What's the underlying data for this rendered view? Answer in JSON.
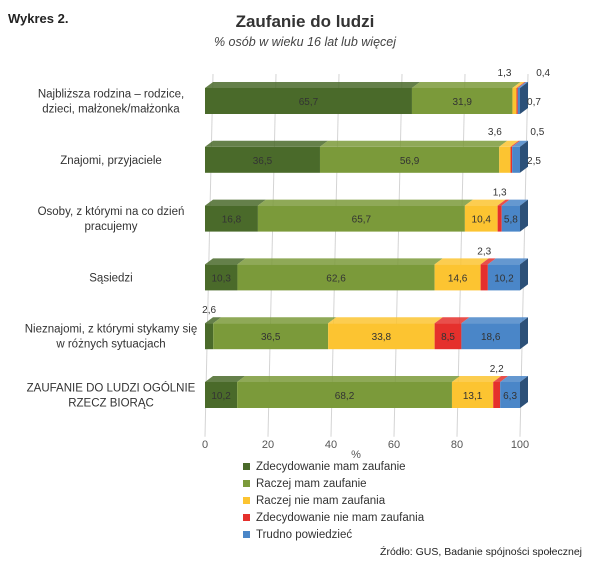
{
  "chart_data": {
    "type": "bar",
    "orientation": "horizontal",
    "stacked": true,
    "figure_label": "Wykres 2.",
    "title": "Zaufanie do ludzi",
    "subtitle": "% osób w wieku 16 lat lub więcej",
    "xlabel": "%",
    "xlim": [
      0,
      100
    ],
    "x_ticks": [
      "0",
      "20",
      "40",
      "60",
      "80",
      "100"
    ],
    "grid": true,
    "legend_position": "bottom",
    "source": "Źródło: GUS, Badanie spójności społecznej",
    "categories": [
      [
        "Najbliższa rodzina – rodzice,",
        "dzieci, małżonek/małżonka"
      ],
      [
        "Znajomi, przyjaciele"
      ],
      [
        "Osoby, z którymi na co dzień",
        "pracujemy"
      ],
      [
        "Sąsiedzi"
      ],
      [
        "Nieznajomi, z którymi stykamy się",
        "w różnych sytuacjach"
      ],
      [
        "ZAUFANIE DO LUDZI OGÓLNIE",
        "RZECZ BIORĄC"
      ]
    ],
    "series": [
      {
        "name": "Zdecydowanie mam zaufanie",
        "color": "#4a6a2a",
        "values": [
          65.7,
          36.5,
          16.8,
          10.3,
          2.6,
          10.2
        ],
        "labels": [
          "65,7",
          "36,5",
          "16,8",
          "10,3",
          "2,6",
          "10,2"
        ]
      },
      {
        "name": "Raczej mam zaufanie",
        "color": "#7b9a3a",
        "values": [
          31.9,
          56.9,
          65.7,
          62.6,
          36.5,
          68.2
        ],
        "labels": [
          "31,9",
          "56,9",
          "65,7",
          "62,6",
          "36,5",
          "68,2"
        ]
      },
      {
        "name": "Raczej nie mam zaufania",
        "color": "#fcc431",
        "values": [
          1.3,
          3.6,
          10.4,
          14.6,
          33.8,
          13.1
        ],
        "labels": [
          "1,3",
          "3,6",
          "10,4",
          "14,6",
          "33,8",
          "13,1"
        ]
      },
      {
        "name": "Zdecydowanie nie mam zaufania",
        "color": "#e5302c",
        "values": [
          0.4,
          0.5,
          1.3,
          2.3,
          8.5,
          2.2
        ],
        "labels": [
          "0,4",
          "0,5",
          "1,3",
          "2,3",
          "8,5",
          "2,2"
        ]
      },
      {
        "name": "Trudno powiedzieć",
        "color": "#4a86c8",
        "values": [
          0.7,
          2.5,
          5.8,
          10.2,
          18.6,
          6.3
        ],
        "labels": [
          "0,7",
          "2,5",
          "5,8",
          "10,2",
          "18,6",
          "6,3"
        ]
      }
    ]
  }
}
